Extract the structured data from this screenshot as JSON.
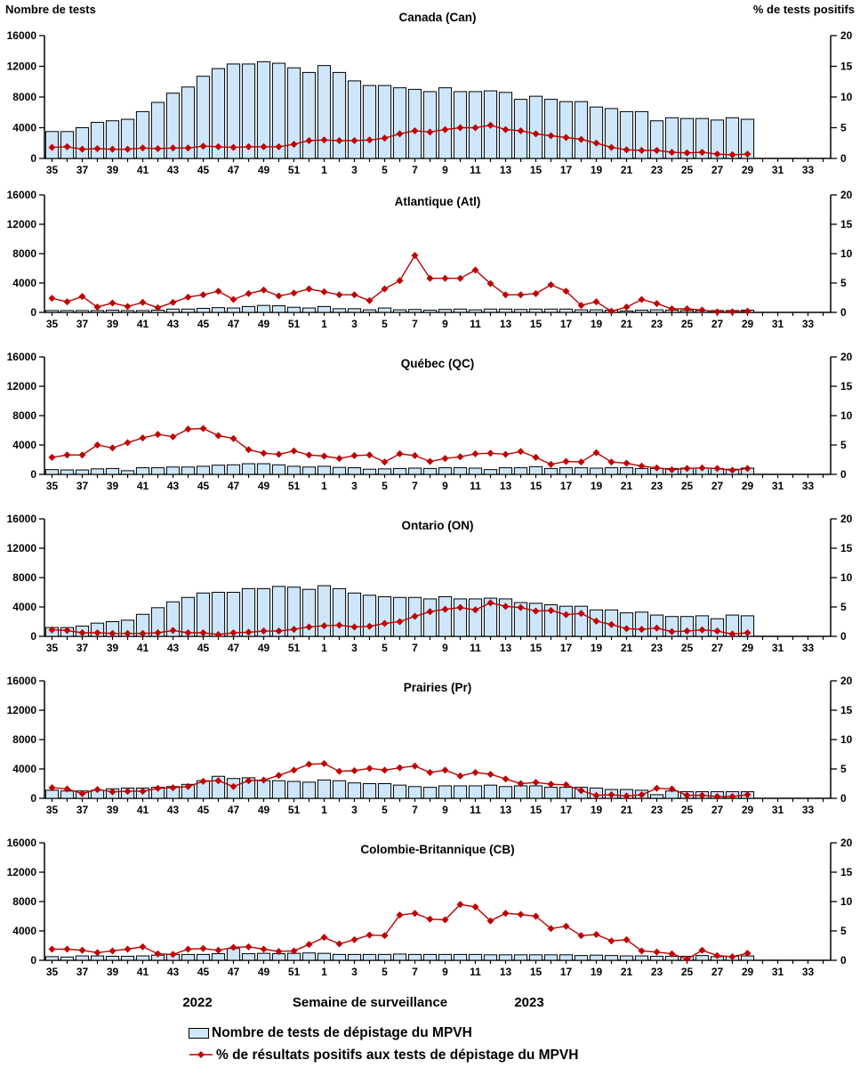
{
  "header": {
    "left_axis_title": "Nombre de tests",
    "right_axis_title": "% de tests positifs"
  },
  "x_axis": {
    "year_left": "2022",
    "axis_title": "Semaine de surveillance",
    "year_right": "2023"
  },
  "legend": [
    {
      "type": "bar",
      "label": "Nombre de tests de dépistage du MPVH"
    },
    {
      "type": "line",
      "label": "% de résultats positifs aux tests de dépistage du MPVH"
    }
  ],
  "colors": {
    "bar_fill": "#CDE6F9",
    "bar_stroke": "#000000",
    "line": "#C00000",
    "axis": "#000000"
  },
  "chart_data": {
    "type": "bar+line",
    "layout": "6 stacked small-multiple panels sharing x axis; bars on left axis, line with diamond markers on right axis; no gridlines; legend bottom-left",
    "categories": [
      "35",
      "36",
      "37",
      "38",
      "39",
      "40",
      "41",
      "42",
      "43",
      "44",
      "45",
      "46",
      "47",
      "48",
      "49",
      "50",
      "51",
      "52",
      "1",
      "2",
      "3",
      "4",
      "5",
      "6",
      "7",
      "8",
      "9",
      "10",
      "11",
      "12",
      "13",
      "14",
      "15",
      "16",
      "17",
      "18",
      "19",
      "20",
      "21",
      "22",
      "23",
      "24",
      "25",
      "26",
      "27",
      "28",
      "29",
      "30",
      "31",
      "32",
      "33",
      "34"
    ],
    "x_tick_label_rule": "labels shown on odd weeks only (35,37,...,51,1,3,...,33)",
    "xlabel": "Semaine de surveillance",
    "ylabel_left": "Nombre de tests",
    "ylabel_right": "% de tests positifs",
    "ylim_left": [
      0,
      16000
    ],
    "ylim_right": [
      0,
      20
    ],
    "yticks_left": [
      0,
      4000,
      8000,
      12000,
      16000
    ],
    "yticks_right": [
      0,
      5,
      10,
      15,
      20
    ],
    "series_names": [
      "Nombre de tests de dépistage du MPVH",
      "% de résultats positifs aux tests de dépistage du MPVH"
    ],
    "panels": [
      {
        "key": "canada",
        "title": "Canada (Can)",
        "tests": [
          3500,
          3500,
          4000,
          4700,
          4900,
          5100,
          6100,
          7300,
          8500,
          9300,
          10700,
          11700,
          12300,
          12300,
          12600,
          12400,
          11800,
          11200,
          12100,
          11200,
          10100,
          9500,
          9500,
          9200,
          9000,
          8700,
          9200,
          8700,
          8700,
          8800,
          8600,
          7700,
          8100,
          7700,
          7400,
          7400,
          6700,
          6500,
          6100,
          6100,
          4900,
          5300,
          5200,
          5200,
          5000,
          5300,
          5100,
          null,
          null,
          null,
          null,
          null
        ],
        "pct_positifs": [
          1.8,
          1.9,
          1.5,
          1.6,
          1.5,
          1.5,
          1.7,
          1.6,
          1.7,
          1.7,
          2.0,
          1.9,
          1.8,
          1.9,
          1.9,
          1.9,
          2.3,
          2.9,
          3.0,
          2.9,
          2.9,
          3.0,
          3.3,
          4.0,
          4.5,
          4.3,
          4.7,
          5.0,
          5.0,
          5.4,
          4.7,
          4.5,
          4.0,
          3.7,
          3.4,
          3.1,
          2.5,
          1.8,
          1.4,
          1.3,
          1.3,
          1.0,
          0.9,
          1.0,
          0.7,
          0.6,
          0.7,
          null,
          null,
          null,
          null,
          null
        ]
      },
      {
        "key": "atlantique",
        "title": "Atlantique (Atl)",
        "tests": [
          250,
          250,
          250,
          250,
          300,
          250,
          250,
          300,
          450,
          450,
          550,
          650,
          600,
          800,
          950,
          900,
          700,
          600,
          800,
          500,
          500,
          350,
          600,
          350,
          400,
          300,
          400,
          450,
          350,
          450,
          450,
          400,
          450,
          450,
          450,
          350,
          350,
          300,
          200,
          300,
          350,
          300,
          250,
          250,
          250,
          250,
          300,
          null,
          null,
          null,
          null,
          null
        ],
        "pct_positifs": [
          2.4,
          1.8,
          2.7,
          0.9,
          1.6,
          1.0,
          1.7,
          0.8,
          1.7,
          2.6,
          3.0,
          3.6,
          2.2,
          3.2,
          3.8,
          2.8,
          3.3,
          4.0,
          3.5,
          3.0,
          3.0,
          2.0,
          4.0,
          5.4,
          9.7,
          5.8,
          5.8,
          5.8,
          7.2,
          4.9,
          3.0,
          3.0,
          3.2,
          4.7,
          3.6,
          1.2,
          1.8,
          0.2,
          0.9,
          2.2,
          1.5,
          0.6,
          0.6,
          0.4,
          0.1,
          0.1,
          0.2,
          null,
          null,
          null,
          null,
          null
        ]
      },
      {
        "key": "quebec",
        "title": "Québec (QC)",
        "tests": [
          650,
          600,
          600,
          750,
          800,
          500,
          900,
          900,
          1000,
          1000,
          1100,
          1250,
          1300,
          1450,
          1450,
          1300,
          1100,
          1000,
          1100,
          950,
          900,
          700,
          750,
          800,
          850,
          800,
          900,
          900,
          850,
          650,
          900,
          900,
          1050,
          800,
          900,
          900,
          850,
          900,
          900,
          800,
          800,
          800,
          850,
          850,
          800,
          700,
          850,
          null,
          null,
          null,
          null,
          null
        ],
        "pct_positifs": [
          2.9,
          3.3,
          3.3,
          5.0,
          4.5,
          5.4,
          6.2,
          6.8,
          6.4,
          7.7,
          7.8,
          6.6,
          6.1,
          4.2,
          3.6,
          3.4,
          4.0,
          3.3,
          3.1,
          2.7,
          3.2,
          3.3,
          2.1,
          3.5,
          3.2,
          2.2,
          2.7,
          3.0,
          3.5,
          3.6,
          3.4,
          3.9,
          2.9,
          1.7,
          2.2,
          2.1,
          3.7,
          2.1,
          1.9,
          1.4,
          1.1,
          0.8,
          1.0,
          1.1,
          1.0,
          0.7,
          1.0,
          null,
          null,
          null,
          null,
          null
        ]
      },
      {
        "key": "ontario",
        "title": "Ontario (ON)",
        "tests": [
          1200,
          1200,
          1400,
          1800,
          2000,
          2200,
          3000,
          3900,
          4700,
          5300,
          5900,
          6000,
          6000,
          6500,
          6500,
          6800,
          6700,
          6400,
          6900,
          6500,
          5900,
          5600,
          5400,
          5300,
          5300,
          5100,
          5400,
          5100,
          5100,
          5200,
          5100,
          4600,
          4500,
          4300,
          4100,
          4100,
          3600,
          3600,
          3200,
          3300,
          2900,
          2700,
          2700,
          2800,
          2400,
          2900,
          2800,
          null,
          null,
          null,
          null,
          null
        ],
        "pct_positifs": [
          1.1,
          1.0,
          0.6,
          0.6,
          0.5,
          0.5,
          0.5,
          0.6,
          1.0,
          0.6,
          0.6,
          0.3,
          0.6,
          0.7,
          0.9,
          0.9,
          1.2,
          1.6,
          1.8,
          1.9,
          1.6,
          1.7,
          2.2,
          2.5,
          3.4,
          4.2,
          4.6,
          4.9,
          4.5,
          5.7,
          5.1,
          4.9,
          4.3,
          4.4,
          3.7,
          3.9,
          2.6,
          2.0,
          1.3,
          1.2,
          1.4,
          0.8,
          0.9,
          1.1,
          0.9,
          0.4,
          0.6,
          null,
          null,
          null,
          null,
          null
        ]
      },
      {
        "key": "prairies",
        "title": "Prairies (Pr)",
        "tests": [
          1100,
          1000,
          1000,
          1100,
          1300,
          1400,
          1400,
          1500,
          1600,
          1900,
          2400,
          3000,
          2700,
          2800,
          2400,
          2400,
          2300,
          2200,
          2500,
          2400,
          2100,
          2000,
          2000,
          1800,
          1600,
          1500,
          1700,
          1700,
          1700,
          1800,
          1600,
          1700,
          1700,
          1500,
          1500,
          1500,
          1400,
          1200,
          1200,
          1100,
          500,
          1000,
          900,
          900,
          900,
          900,
          900,
          null,
          null,
          null,
          null,
          null
        ],
        "pct_positifs": [
          1.8,
          1.6,
          0.8,
          1.5,
          1.1,
          1.2,
          1.2,
          1.7,
          1.8,
          2.0,
          2.9,
          3.0,
          2.0,
          3.0,
          3.1,
          3.9,
          4.8,
          5.8,
          5.9,
          4.6,
          4.7,
          5.1,
          4.8,
          5.2,
          5.5,
          4.4,
          4.8,
          3.8,
          4.4,
          4.1,
          3.3,
          2.5,
          2.7,
          2.4,
          2.3,
          1.3,
          0.5,
          0.6,
          0.4,
          0.6,
          1.7,
          1.6,
          0.5,
          0.5,
          0.3,
          0.3,
          0.6,
          null,
          null,
          null,
          null,
          null
        ]
      },
      {
        "key": "colombie-britannique",
        "title": "Colombie-Britannique (CB)",
        "tests": [
          500,
          450,
          600,
          600,
          550,
          550,
          600,
          700,
          800,
          800,
          800,
          900,
          1600,
          900,
          950,
          900,
          950,
          1000,
          950,
          800,
          800,
          800,
          800,
          850,
          800,
          800,
          800,
          800,
          800,
          750,
          750,
          750,
          750,
          750,
          750,
          650,
          700,
          650,
          600,
          600,
          550,
          550,
          550,
          650,
          500,
          550,
          600,
          null,
          null,
          null,
          null,
          null
        ],
        "pct_positifs": [
          1.9,
          1.9,
          1.7,
          1.3,
          1.6,
          1.9,
          2.3,
          1.1,
          1.0,
          1.9,
          2.0,
          1.7,
          2.2,
          2.3,
          1.9,
          1.5,
          1.6,
          2.7,
          3.9,
          2.8,
          3.5,
          4.3,
          4.2,
          7.7,
          8.0,
          7.0,
          6.9,
          9.5,
          9.1,
          6.7,
          8.0,
          7.8,
          7.5,
          5.4,
          5.8,
          4.2,
          4.4,
          3.3,
          3.5,
          1.6,
          1.4,
          1.1,
          0.2,
          1.7,
          0.8,
          0.6,
          1.2,
          null,
          null,
          null,
          null,
          null
        ]
      }
    ]
  }
}
